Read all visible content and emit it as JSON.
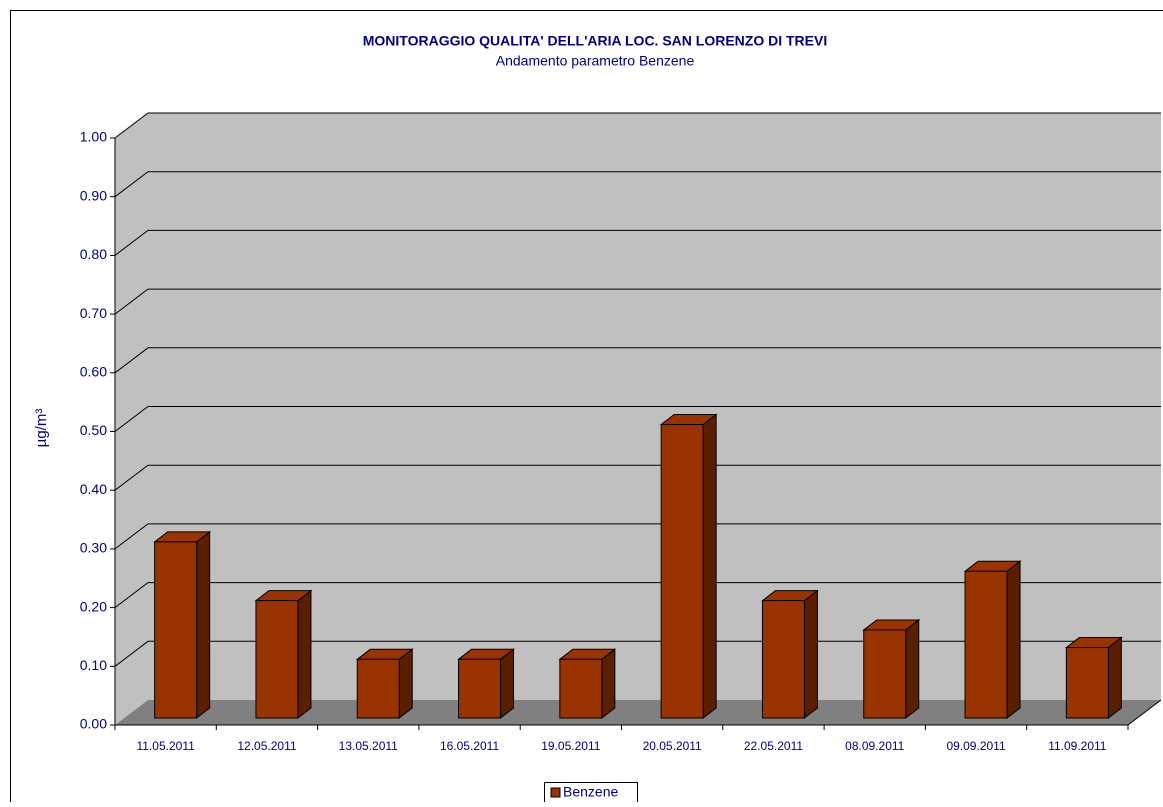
{
  "chart_data": {
    "type": "bar3d",
    "title": "MONITORAGGIO QUALITA' DELL'ARIA LOC. SAN LORENZO DI TREVI",
    "subtitle": "Andamento parametro Benzene",
    "y_label": "µg/m³",
    "categories": [
      "11.05.2011",
      "12.05.2011",
      "13.05.2011",
      "16.05.2011",
      "19.05.2011",
      "20.05.2011",
      "22.05.2011",
      "08.09.2011",
      "09.09.2011",
      "11.09.2011"
    ],
    "series": [
      {
        "name": "Benzene",
        "color": "#993300",
        "values": [
          0.3,
          0.2,
          0.1,
          0.1,
          0.1,
          0.5,
          0.2,
          0.15,
          0.25,
          0.12
        ]
      }
    ],
    "ylim": [
      0,
      1
    ],
    "yticks": [
      {
        "value": 0,
        "label": "0.00"
      },
      {
        "value": 0.1,
        "label": "0.10"
      },
      {
        "value": 0.2,
        "label": "0.20"
      },
      {
        "value": 0.3,
        "label": "0.30"
      },
      {
        "value": 0.4,
        "label": "0.40"
      },
      {
        "value": 0.5,
        "label": "0.50"
      },
      {
        "value": 0.6,
        "label": "0.60"
      },
      {
        "value": 0.7,
        "label": "0.70"
      },
      {
        "value": 0.8,
        "label": "0.80"
      },
      {
        "value": 0.9,
        "label": "0.90"
      },
      {
        "value": 1,
        "label": "1.00"
      }
    ],
    "grid": true,
    "legend": "bottom"
  }
}
